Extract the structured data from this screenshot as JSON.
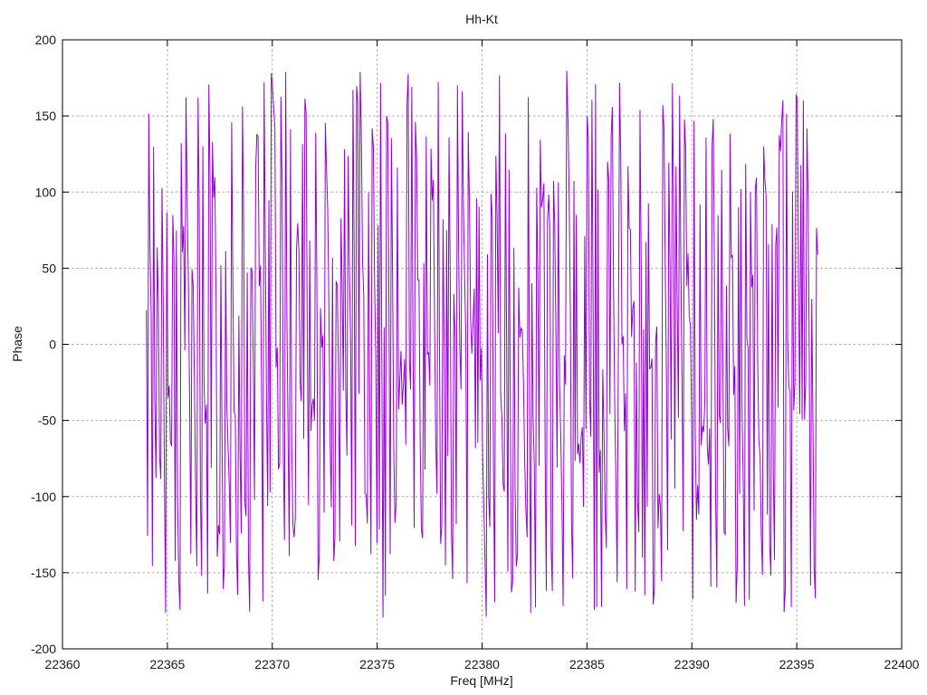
{
  "title": "Hh-Kt",
  "chart_data": {
    "type": "line",
    "title": "Hh-Kt",
    "xlabel": "Freq [MHz]",
    "ylabel": "Phase",
    "xlim": [
      22360,
      22400
    ],
    "ylim": [
      -200,
      200
    ],
    "xticks": [
      22360,
      22365,
      22370,
      22375,
      22380,
      22385,
      22390,
      22395,
      22400
    ],
    "yticks": [
      -200,
      -150,
      -100,
      -50,
      0,
      50,
      100,
      150,
      200
    ],
    "grid": true,
    "legend_position": "none",
    "series": [
      {
        "name": "phase",
        "color": "#9400D3",
        "description": "Wrapped phase response between -180 and +180 degrees; phase advances rapidly between adjacent frequency samples producing dense near-vertical strokes across the band",
        "x_start": 22364.0,
        "x_end": 22396.0,
        "n_points": 560,
        "wrap_range": [
          -180,
          180
        ],
        "synth": {
          "seed": 77,
          "start_phase_deg": 170,
          "base_step_deg": 150,
          "rand_step_deg": 235
        }
      }
    ],
    "styles": {
      "line_color": "#9400D3",
      "grid_color": "#a8a8a8",
      "grid_dash": "2.6 2.6",
      "axis_color": "#000000",
      "background": "#ffffff",
      "tick_length": 7
    }
  }
}
